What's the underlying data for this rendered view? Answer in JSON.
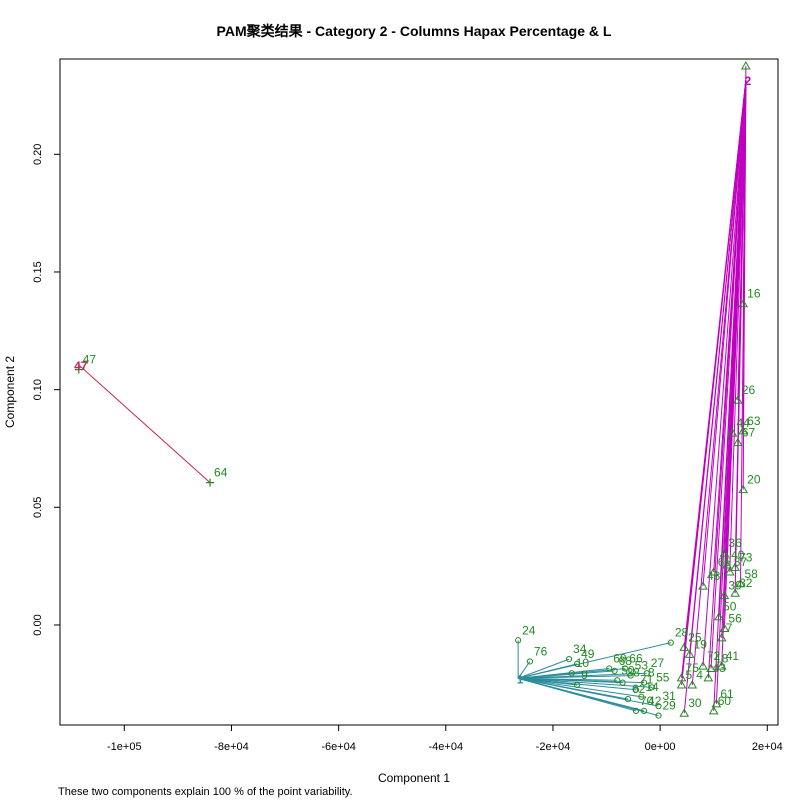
{
  "chart_data": {
    "type": "scatter",
    "title": "PAM聚类结果 - Category  2  - Columns  Hapax Percentage  &  L",
    "xlabel": "Component 1",
    "ylabel": "Component 2",
    "footnote": "These two components explain 100 % of the point variability.",
    "xlim": [
      -112000,
      22000
    ],
    "ylim": [
      -0.0425,
      0.2405
    ],
    "x_ticks": [
      {
        "value": -100000,
        "label": "-1e+05"
      },
      {
        "value": -80000,
        "label": "-8e+04"
      },
      {
        "value": -60000,
        "label": "-6e+04"
      },
      {
        "value": -40000,
        "label": "-4e+04"
      },
      {
        "value": -20000,
        "label": "-2e+04"
      },
      {
        "value": 0,
        "label": "0e+00"
      },
      {
        "value": 20000,
        "label": "2e+04"
      }
    ],
    "y_ticks": [
      {
        "value": 0.0,
        "label": "0.00"
      },
      {
        "value": 0.05,
        "label": "0.05"
      },
      {
        "value": 0.1,
        "label": "0.10"
      },
      {
        "value": 0.15,
        "label": "0.15"
      },
      {
        "value": 0.2,
        "label": "0.20"
      }
    ],
    "colors": {
      "points": "#228b22",
      "cluster1_line": "#2b8c9c",
      "cluster2_line": "#c000c0",
      "cluster3_line": "#c8284f"
    },
    "clusters": [
      {
        "id": "1",
        "symbol": "circle",
        "color": "#2b8c9c",
        "medoid": {
          "x": -26500,
          "y": -0.0227,
          "label": "1"
        },
        "points": [
          {
            "x": -26500,
            "y": -0.0065,
            "label": "24"
          },
          {
            "x": -24300,
            "y": -0.0155,
            "label": "76"
          },
          {
            "x": -17000,
            "y": -0.0145,
            "label": "34"
          },
          {
            "x": -15500,
            "y": -0.0165,
            "label": "49"
          },
          {
            "x": -16500,
            "y": -0.0205,
            "label": "10"
          },
          {
            "x": -15500,
            "y": -0.0255,
            "label": "9"
          },
          {
            "x": -9500,
            "y": -0.0185,
            "label": "69"
          },
          {
            "x": -8500,
            "y": -0.0195,
            "label": "68"
          },
          {
            "x": -6500,
            "y": -0.0185,
            "label": "66"
          },
          {
            "x": -5500,
            "y": -0.0215,
            "label": "53"
          },
          {
            "x": -2500,
            "y": -0.0205,
            "label": "27"
          },
          {
            "x": -8000,
            "y": -0.0235,
            "label": "50"
          },
          {
            "x": -7000,
            "y": -0.0245,
            "label": "38"
          },
          {
            "x": -3000,
            "y": -0.0245,
            "label": "8"
          },
          {
            "x": -4500,
            "y": -0.0275,
            "label": "71"
          },
          {
            "x": -1500,
            "y": -0.0265,
            "label": "55"
          },
          {
            "x": -6000,
            "y": -0.0315,
            "label": "62"
          },
          {
            "x": -4500,
            "y": -0.0365,
            "label": "70"
          },
          {
            "x": -3000,
            "y": -0.0365,
            "label": "42"
          },
          {
            "x": -300,
            "y": -0.0345,
            "label": "31"
          },
          {
            "x": -300,
            "y": -0.0385,
            "label": "29"
          },
          {
            "x": -3500,
            "y": -0.0305,
            "label": "14"
          },
          {
            "x": 2000,
            "y": -0.0075,
            "label": "28"
          }
        ]
      },
      {
        "id": "2",
        "symbol": "triangle",
        "color": "#c000c0",
        "medoid": {
          "x": 16000,
          "y": 0.2315,
          "label": "2"
        },
        "points": [
          {
            "x": 16000,
            "y": 0.2375,
            "label": ""
          },
          {
            "x": 15500,
            "y": 0.1365,
            "label": "16"
          },
          {
            "x": 14500,
            "y": 0.0955,
            "label": "26"
          },
          {
            "x": 15500,
            "y": 0.0825,
            "label": "63"
          },
          {
            "x": 13500,
            "y": 0.0815,
            "label": "44"
          },
          {
            "x": 14500,
            "y": 0.0775,
            "label": "67"
          },
          {
            "x": 15500,
            "y": 0.0575,
            "label": "20"
          },
          {
            "x": 12000,
            "y": 0.0305,
            "label": "36"
          },
          {
            "x": 12500,
            "y": 0.0255,
            "label": "40"
          },
          {
            "x": 14000,
            "y": 0.0245,
            "label": "73"
          },
          {
            "x": 13000,
            "y": 0.0225,
            "label": "37"
          },
          {
            "x": 10000,
            "y": 0.0225,
            "label": "65"
          },
          {
            "x": 15000,
            "y": 0.0175,
            "label": "58"
          },
          {
            "x": 8000,
            "y": 0.0165,
            "label": "48"
          },
          {
            "x": 14000,
            "y": 0.0135,
            "label": "32"
          },
          {
            "x": 12000,
            "y": 0.0125,
            "label": "39"
          },
          {
            "x": 11000,
            "y": 0.0035,
            "label": "50"
          },
          {
            "x": 12000,
            "y": -0.0015,
            "label": "56"
          },
          {
            "x": 11500,
            "y": -0.0055,
            "label": "7"
          },
          {
            "x": 4500,
            "y": -0.0095,
            "label": "25"
          },
          {
            "x": 5500,
            "y": -0.0125,
            "label": "19"
          },
          {
            "x": 8000,
            "y": -0.0175,
            "label": "72"
          },
          {
            "x": 9500,
            "y": -0.0185,
            "label": "18"
          },
          {
            "x": 11500,
            "y": -0.0175,
            "label": "41"
          },
          {
            "x": 9000,
            "y": -0.0225,
            "label": "43"
          },
          {
            "x": 4000,
            "y": -0.0225,
            "label": "75"
          },
          {
            "x": 4000,
            "y": -0.0255,
            "label": "5"
          },
          {
            "x": 6000,
            "y": -0.0255,
            "label": "4"
          },
          {
            "x": 10500,
            "y": -0.0335,
            "label": "61"
          },
          {
            "x": 10000,
            "y": -0.0365,
            "label": "60"
          },
          {
            "x": 4500,
            "y": -0.0375,
            "label": "30"
          }
        ]
      },
      {
        "id": "3",
        "symbol": "plus",
        "color": "#c8284f",
        "medoid": {
          "x": -108500,
          "y": 0.1105,
          "label": "47"
        },
        "points": [
          {
            "x": -108500,
            "y": 0.1085,
            "label": "47"
          },
          {
            "x": -84000,
            "y": 0.0605,
            "label": "64"
          }
        ]
      }
    ]
  }
}
